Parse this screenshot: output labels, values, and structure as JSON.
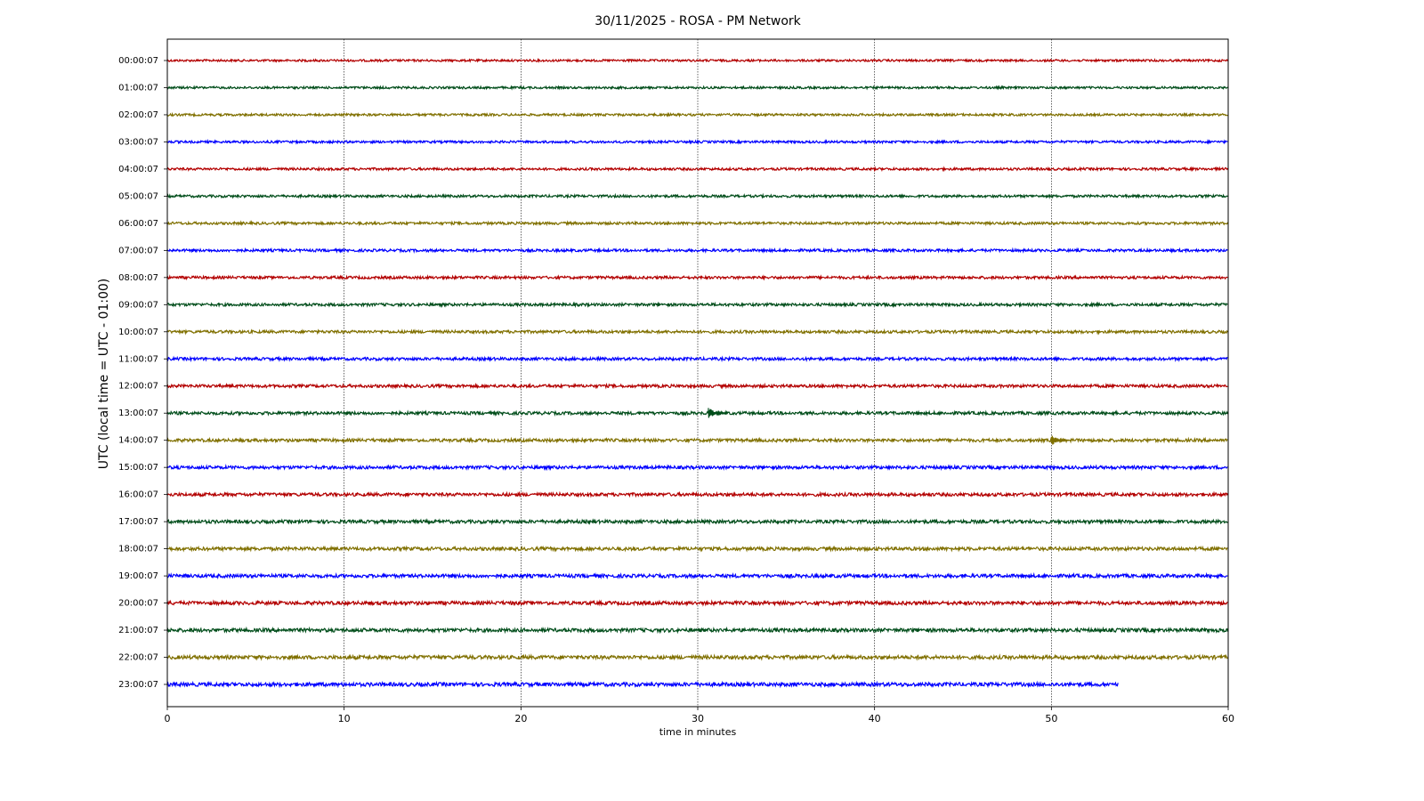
{
  "chart_data": {
    "type": "helicorder",
    "title": "30/11/2025 - ROSA - PM Network",
    "xlabel": "time in minutes",
    "ylabel": "UTC (local time = UTC - 01:00)",
    "xlim": [
      0,
      60
    ],
    "xticks": [
      0,
      10,
      20,
      30,
      40,
      50,
      60
    ],
    "grid": true,
    "series": [
      {
        "name": "00:00:07",
        "color": "#b30000",
        "x": [
          0,
          60
        ]
      },
      {
        "name": "01:00:07",
        "color": "#004d1a",
        "x": [
          0,
          60
        ]
      },
      {
        "name": "02:00:07",
        "color": "#807000",
        "x": [
          0,
          60
        ]
      },
      {
        "name": "03:00:07",
        "color": "#0000ff",
        "x": [
          0,
          60
        ]
      },
      {
        "name": "04:00:07",
        "color": "#b30000",
        "x": [
          0,
          60
        ]
      },
      {
        "name": "05:00:07",
        "color": "#004d1a",
        "x": [
          0,
          60
        ]
      },
      {
        "name": "06:00:07",
        "color": "#807000",
        "x": [
          0,
          60
        ]
      },
      {
        "name": "07:00:07",
        "color": "#0000ff",
        "x": [
          0,
          60
        ]
      },
      {
        "name": "08:00:07",
        "color": "#b30000",
        "x": [
          0,
          60
        ]
      },
      {
        "name": "09:00:07",
        "color": "#004d1a",
        "x": [
          0,
          60
        ]
      },
      {
        "name": "10:00:07",
        "color": "#807000",
        "x": [
          0,
          60
        ]
      },
      {
        "name": "11:00:07",
        "color": "#0000ff",
        "x": [
          0,
          60
        ]
      },
      {
        "name": "12:00:07",
        "color": "#b30000",
        "x": [
          0,
          60
        ]
      },
      {
        "name": "13:00:07",
        "color": "#004d1a",
        "x": [
          0,
          60
        ],
        "events": [
          30.6
        ]
      },
      {
        "name": "14:00:07",
        "color": "#807000",
        "x": [
          0,
          60
        ],
        "events": [
          50
        ]
      },
      {
        "name": "15:00:07",
        "color": "#0000ff",
        "x": [
          0,
          60
        ]
      },
      {
        "name": "16:00:07",
        "color": "#b30000",
        "x": [
          0,
          60
        ]
      },
      {
        "name": "17:00:07",
        "color": "#004d1a",
        "x": [
          0,
          60
        ]
      },
      {
        "name": "18:00:07",
        "color": "#807000",
        "x": [
          0,
          60
        ]
      },
      {
        "name": "19:00:07",
        "color": "#0000ff",
        "x": [
          0,
          60
        ]
      },
      {
        "name": "20:00:07",
        "color": "#b30000",
        "x": [
          0,
          60
        ]
      },
      {
        "name": "21:00:07",
        "color": "#004d1a",
        "x": [
          0,
          60
        ]
      },
      {
        "name": "22:00:07",
        "color": "#807000",
        "x": [
          0,
          60
        ]
      },
      {
        "name": "23:00:07",
        "color": "#0000ff",
        "x": [
          0,
          53.8
        ]
      }
    ]
  }
}
